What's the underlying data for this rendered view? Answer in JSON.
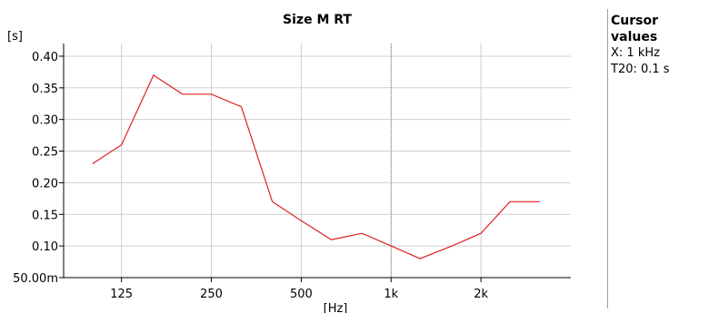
{
  "chart_data": {
    "type": "line",
    "title": "Size M RT",
    "ylabel": "[s]",
    "xlabel": "[Hz]",
    "x_scale": "log",
    "xlim": [
      80,
      4000
    ],
    "ylim": [
      0.05,
      0.42
    ],
    "x_ticks": [
      {
        "value": 125,
        "label": "125"
      },
      {
        "value": 250,
        "label": "250"
      },
      {
        "value": 500,
        "label": "500"
      },
      {
        "value": 1000,
        "label": "1k"
      },
      {
        "value": 2000,
        "label": "2k"
      }
    ],
    "y_ticks": [
      {
        "value": 0.05,
        "label": "50.00m"
      },
      {
        "value": 0.1,
        "label": "0.10"
      },
      {
        "value": 0.15,
        "label": "0.15"
      },
      {
        "value": 0.2,
        "label": "0.20"
      },
      {
        "value": 0.25,
        "label": "0.25"
      },
      {
        "value": 0.3,
        "label": "0.30"
      },
      {
        "value": 0.35,
        "label": "0.35"
      },
      {
        "value": 0.4,
        "label": "0.40"
      }
    ],
    "grid": true,
    "cursor_x": 1000,
    "series": [
      {
        "color": "#e02020",
        "x": [
          100,
          125,
          160,
          200,
          250,
          315,
          400,
          500,
          630,
          800,
          1000,
          1250,
          1600,
          2000,
          2500,
          3150
        ],
        "y": [
          0.23,
          0.26,
          0.37,
          0.34,
          0.34,
          0.32,
          0.17,
          0.14,
          0.11,
          0.12,
          0.1,
          0.08,
          0.1,
          0.12,
          0.17,
          0.17
        ]
      }
    ]
  },
  "cursor_panel": {
    "title": "Cursor values",
    "x_value": "X: 1 kHz",
    "y_value": "T20: 0.1 s"
  }
}
